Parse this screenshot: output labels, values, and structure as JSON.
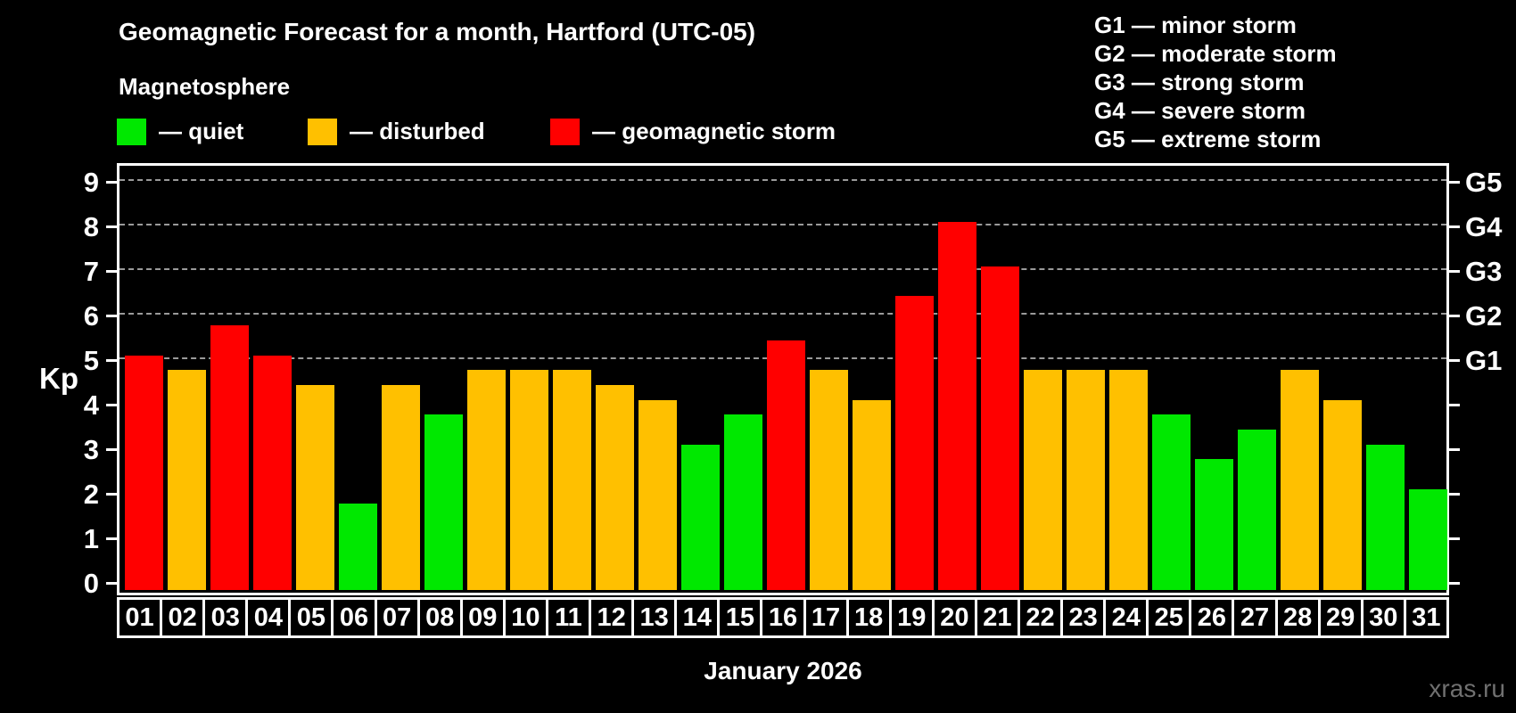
{
  "header": {
    "title": "Geomagnetic Forecast for a month, Hartford (UTC-05)",
    "subtitle": "Magnetosphere"
  },
  "legend": {
    "items": [
      {
        "name": "quiet",
        "label": "— quiet",
        "color": "#00e800",
        "x": 0
      },
      {
        "name": "disturbed",
        "label": "— disturbed",
        "color": "#ffc000",
        "x": 214
      },
      {
        "name": "storm",
        "label": "— geomagnetic storm",
        "color": "#ff0000",
        "x": 486
      }
    ]
  },
  "g_legend": {
    "lines": [
      "G1 — minor storm",
      "G2 — moderate storm",
      "G3 — strong storm",
      "G4 — severe storm",
      "G5 — extreme storm"
    ]
  },
  "axes": {
    "y_label": "Kp",
    "left_ticks": [
      0,
      1,
      2,
      3,
      4,
      5,
      6,
      7,
      8,
      9
    ],
    "right_labels": [
      {
        "kp": 5,
        "label": "G1"
      },
      {
        "kp": 6,
        "label": "G2"
      },
      {
        "kp": 7,
        "label": "G3"
      },
      {
        "kp": 8,
        "label": "G4"
      },
      {
        "kp": 9,
        "label": "G5"
      }
    ],
    "x_label": "January 2026"
  },
  "watermark": "xras.ru",
  "chart_data": {
    "type": "bar",
    "title": "Geomagnetic Forecast for a month, Hartford (UTC-05)",
    "subtitle": "Magnetosphere",
    "xlabel": "January 2026",
    "ylabel": "Kp",
    "ylim": [
      0,
      9
    ],
    "grid": "horizontal dashed gridlines at Kp 5,6,7,8,9 (G1–G5 levels)",
    "legend_position": "top",
    "categories": [
      "01",
      "02",
      "03",
      "04",
      "05",
      "06",
      "07",
      "08",
      "09",
      "10",
      "11",
      "12",
      "13",
      "14",
      "15",
      "16",
      "17",
      "18",
      "19",
      "20",
      "21",
      "22",
      "23",
      "24",
      "25",
      "26",
      "27",
      "28",
      "29",
      "30",
      "31"
    ],
    "series": [
      {
        "name": "Kp forecast",
        "values": [
          5.0,
          4.67,
          5.67,
          5.0,
          4.33,
          1.67,
          4.33,
          3.67,
          4.67,
          4.67,
          4.67,
          4.33,
          4.0,
          3.0,
          3.67,
          5.33,
          4.67,
          4.0,
          6.33,
          8.0,
          7.0,
          4.67,
          4.67,
          4.67,
          3.67,
          2.67,
          3.33,
          4.67,
          4.0,
          3.0,
          2.0
        ]
      }
    ],
    "point_status": [
      "storm",
      "disturbed",
      "storm",
      "storm",
      "disturbed",
      "quiet",
      "disturbed",
      "quiet",
      "disturbed",
      "disturbed",
      "disturbed",
      "disturbed",
      "disturbed",
      "quiet",
      "quiet",
      "storm",
      "disturbed",
      "disturbed",
      "storm",
      "storm",
      "storm",
      "disturbed",
      "disturbed",
      "disturbed",
      "quiet",
      "quiet",
      "quiet",
      "disturbed",
      "disturbed",
      "quiet",
      "quiet"
    ],
    "status_colors": {
      "quiet": "#00e800",
      "disturbed": "#ffc000",
      "storm": "#ff0000"
    },
    "g_levels": [
      {
        "label": "G5",
        "kp": 9
      },
      {
        "label": "G4",
        "kp": 8
      },
      {
        "label": "G3",
        "kp": 7
      },
      {
        "label": "G2",
        "kp": 6
      },
      {
        "label": "G1",
        "kp": 5
      }
    ]
  }
}
